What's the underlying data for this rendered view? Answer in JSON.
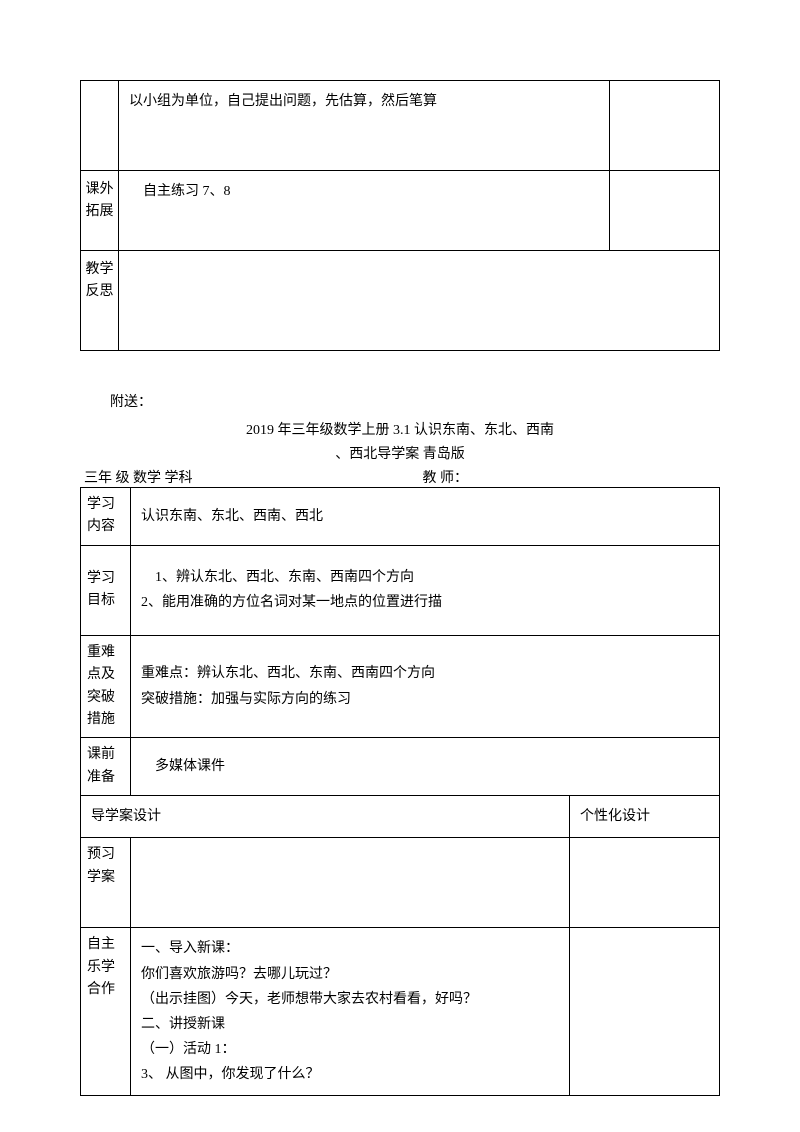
{
  "table1": {
    "row1": {
      "content": "以小组为单位，自己提出问题，先估算，然后笔算"
    },
    "row2": {
      "label": "课外拓展",
      "content": "自主练习 7、8"
    },
    "row3": {
      "label": "教学反思",
      "content": ""
    }
  },
  "attachment": "附送：",
  "title_line1": "2019 年三年级数学上册 3.1 认识东南、东北、西南",
  "title_line2": "、西北导学案 青岛版",
  "subject_line": "三年 级 数学 学科",
  "teacher_line": "教 师：",
  "table2": {
    "learn_content": {
      "label": "学习内容",
      "content": "认识东南、东北、西南、西北"
    },
    "learn_goal": {
      "label": "学习目标",
      "line1": "1、辨认东北、西北、东南、西南四个方向",
      "line2": "2、能用准确的方位名词对某一地点的位置进行描"
    },
    "difficulty": {
      "label": "重难点及突破措施",
      "line1": "重难点：辨认东北、西北、东南、西南四个方向",
      "line2": "突破措施：加强与实际方向的练习"
    },
    "prep": {
      "label": "课前准备",
      "content": "多媒体课件"
    },
    "design_header": {
      "col1": "导学案设计",
      "col2": "个性化设计"
    },
    "preview": {
      "label": "预习学案",
      "content": ""
    },
    "main": {
      "label": "自主乐学合作",
      "line1": "一、导入新课：",
      "line2": "你们喜欢旅游吗？去哪儿玩过？",
      "line3": "（出示挂图）今天，老师想带大家去农村看看，好吗？",
      "line4": "二、讲授新课",
      "line5": "（一）活动 1：",
      "line6": "3、 从图中，你发现了什么？"
    }
  }
}
